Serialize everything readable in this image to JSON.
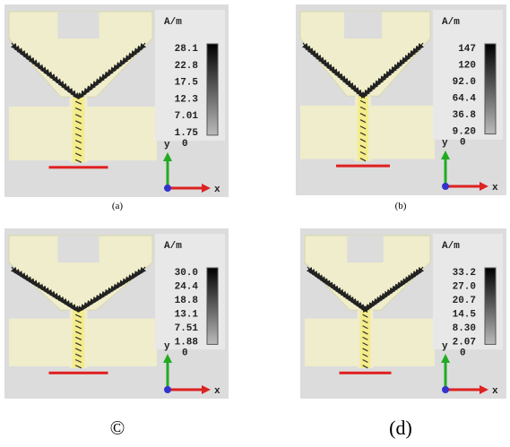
{
  "panels": [
    {
      "unit": "A/m",
      "scale": [
        "28.1",
        "22.8",
        "17.5",
        "12.3",
        "7.01",
        "1.75"
      ],
      "zero": "0",
      "axis_y": "y",
      "axis_x": "x",
      "caption": "(a)"
    },
    {
      "unit": "A/m",
      "scale": [
        "147",
        "120",
        "92.0",
        "64.4",
        "36.8",
        "9.20"
      ],
      "zero": "0",
      "axis_y": "y",
      "axis_x": "x",
      "caption": "(b)"
    },
    {
      "unit": "A/m",
      "scale": [
        "30.0",
        "24.4",
        "18.8",
        "13.1",
        "7.51",
        "1.88"
      ],
      "zero": "0",
      "axis_y": "y",
      "axis_x": "x",
      "caption": "©"
    },
    {
      "unit": "A/m",
      "scale": [
        "33.2",
        "27.0",
        "20.7",
        "14.5",
        "8.30",
        "2.07"
      ],
      "zero": "0",
      "axis_y": "y",
      "axis_x": "x",
      "caption": "(d)"
    }
  ]
}
